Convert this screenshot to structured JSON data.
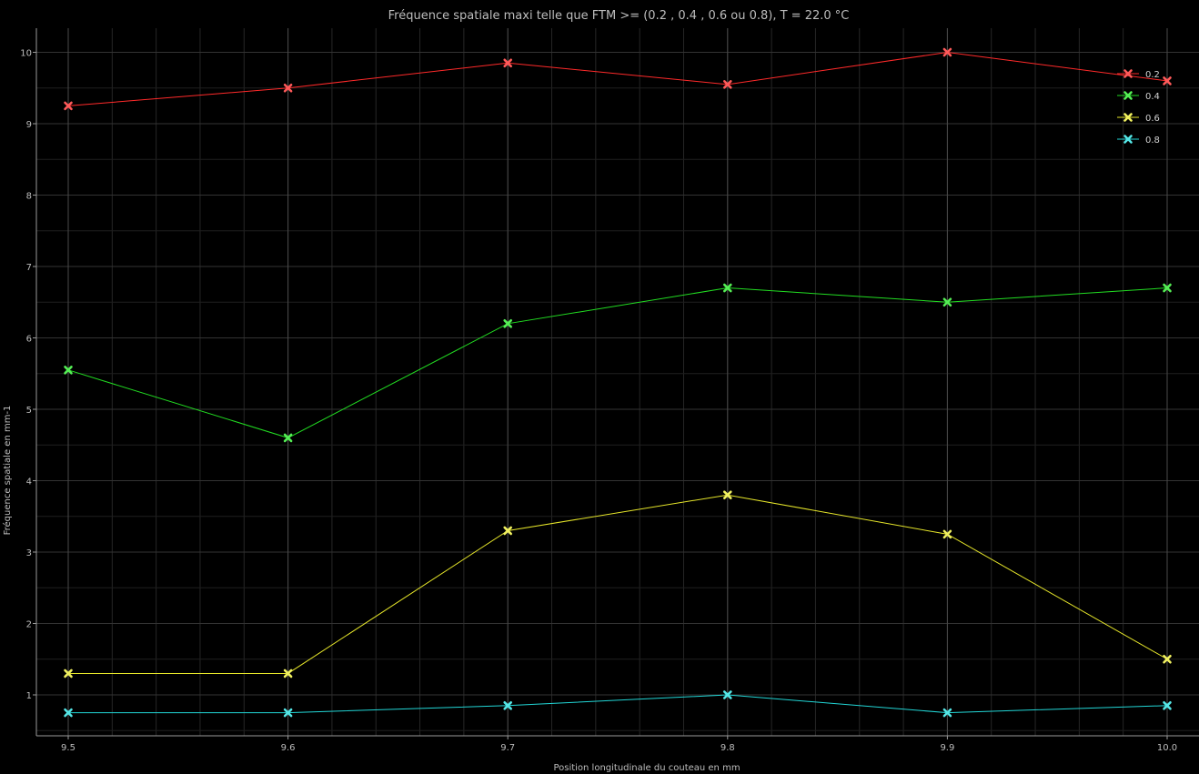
{
  "chart_data": {
    "type": "line",
    "title": "Fréquence spatiale maxi telle que FTM >= (0.2 , 0.4 , 0.6 ou 0.8), T = 22.0 °C",
    "xlabel": "Position longitudinale du couteau en mm",
    "ylabel": "Fréquence spatiale en mm-1",
    "x": [
      9.5,
      9.6,
      9.7,
      9.8,
      9.9,
      10.0
    ],
    "x_tick_labels": [
      "9.5",
      "9.6",
      "9.7",
      "9.8",
      "9.9",
      "10.0"
    ],
    "xlim": [
      9.5,
      10.0
    ],
    "ylim": [
      0.5,
      10.4
    ],
    "y_ticks": [
      1,
      2,
      3,
      4,
      5,
      6,
      7,
      8,
      9,
      10
    ],
    "y_tick_labels": [
      "1",
      "2",
      "3",
      "4",
      "5",
      "6",
      "7",
      "8",
      "9",
      "10"
    ],
    "grid": true,
    "legend_position": "top-right",
    "series": [
      {
        "name": "0.2",
        "color": "#ff2a2a",
        "marker_color": "#ff5a5a",
        "values": [
          9.25,
          9.5,
          9.85,
          9.55,
          10.0,
          9.6
        ]
      },
      {
        "name": "0.4",
        "color": "#22dd22",
        "marker_color": "#55ee55",
        "values": [
          5.55,
          4.6,
          6.2,
          6.7,
          6.5,
          6.7
        ]
      },
      {
        "name": "0.6",
        "color": "#e6e62a",
        "marker_color": "#f0f060",
        "values": [
          1.3,
          1.3,
          3.3,
          3.8,
          3.25,
          1.5
        ]
      },
      {
        "name": "0.8",
        "color": "#22d6d6",
        "marker_color": "#55e6e6",
        "values": [
          0.75,
          0.75,
          0.85,
          1.0,
          0.75,
          0.85
        ]
      }
    ]
  }
}
